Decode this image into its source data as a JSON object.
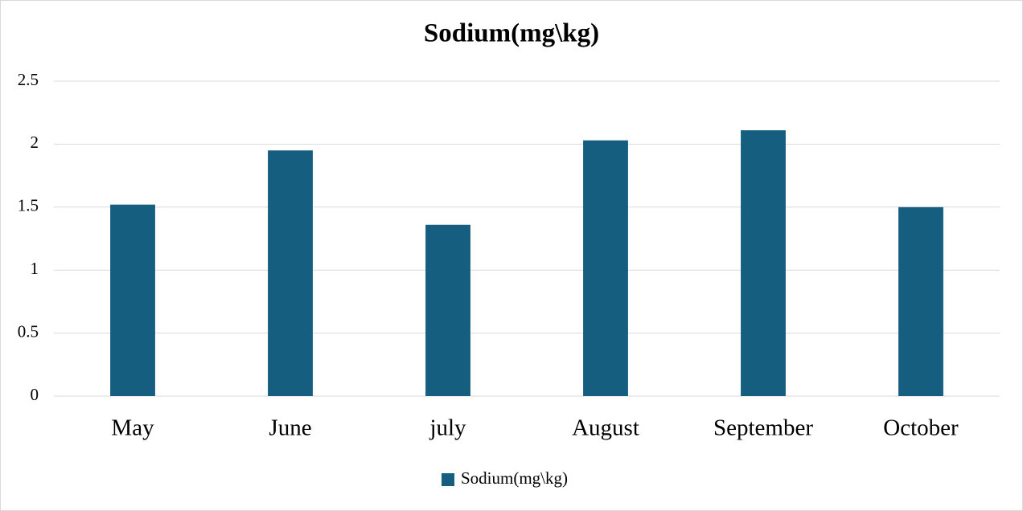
{
  "chart_data": {
    "type": "bar",
    "title": "Sodium(mg\\kg)",
    "categories": [
      "May",
      "June",
      "july",
      "August",
      "September",
      "October"
    ],
    "series": [
      {
        "name": "Sodium(mg\\kg)",
        "color": "#165e80",
        "values": [
          1.52,
          1.95,
          1.36,
          2.03,
          2.11,
          1.5
        ]
      }
    ],
    "ylim": [
      0,
      2.5
    ],
    "yticks": [
      0,
      0.5,
      1,
      1.5,
      2,
      2.5
    ],
    "grid": true,
    "legend": "bottom"
  }
}
